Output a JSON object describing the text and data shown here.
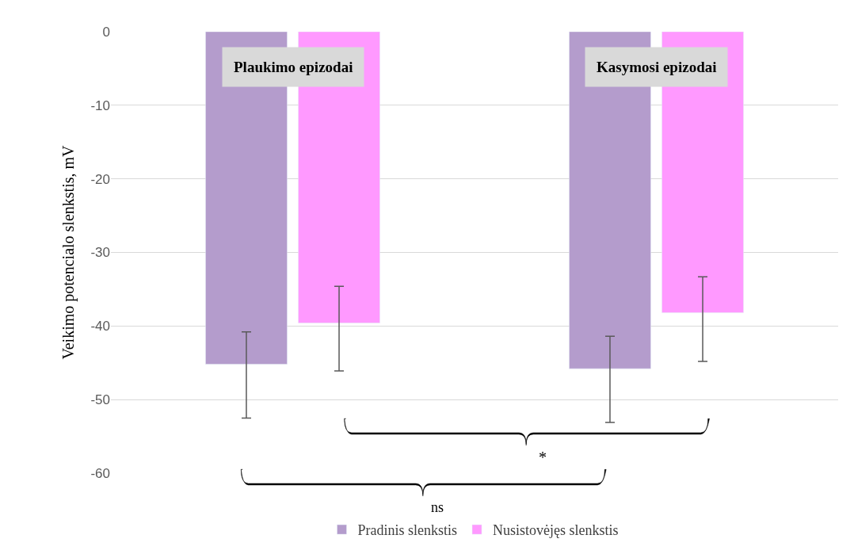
{
  "chart_data": {
    "type": "bar",
    "ylabel": "Veikimo potencialo slenkstis, mV",
    "categories": [
      "Plaukimo epizodai",
      "Kasymosi epizodai"
    ],
    "series": [
      {
        "name": "Pradinis slenkstis",
        "color": "#b49ccc",
        "values": [
          -45.2,
          -45.8
        ],
        "errors": [
          [
            -52.5,
            -40.8
          ],
          [
            -53.1,
            -41.4
          ]
        ]
      },
      {
        "name": "Nusistovėjęs slenkstis",
        "color": "#ff99ff",
        "values": [
          -39.6,
          -38.2
        ],
        "errors": [
          [
            -46.1,
            -34.6
          ],
          [
            -44.8,
            -33.3
          ]
        ]
      }
    ],
    "ylim": [
      -60,
      0
    ],
    "yticks": [
      0,
      -10,
      -20,
      -30,
      -40,
      -50,
      -60
    ],
    "grid": "y",
    "legend": "bottom",
    "annotations": [
      "*",
      "ns"
    ]
  }
}
